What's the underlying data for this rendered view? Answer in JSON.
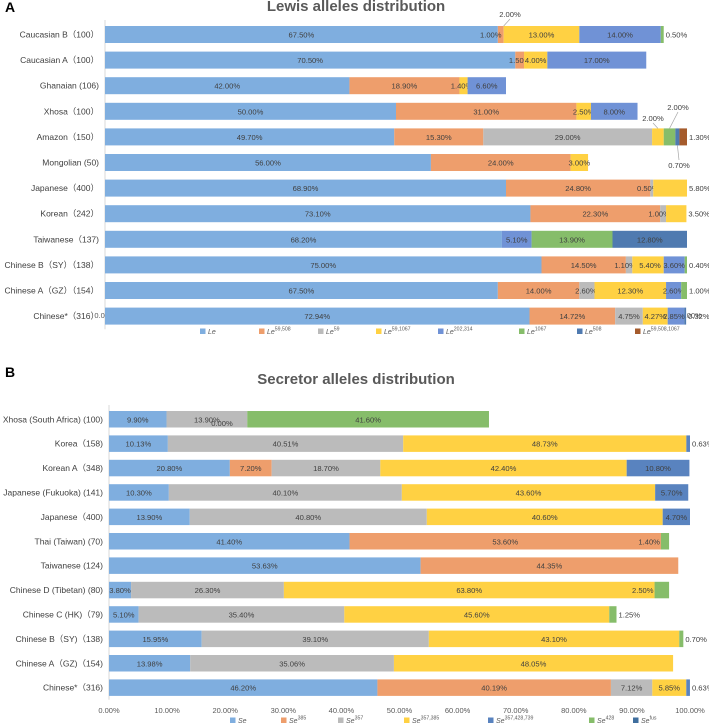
{
  "chart_data": [
    {
      "panel": "A",
      "type": "bar",
      "orientation": "horizontal",
      "stacked": true,
      "title": "Lewis alleles distribution",
      "categories": [
        "Caucasian B（100）",
        "Caucasian A（100）",
        "Ghanaian (106)",
        "Xhosa（100）",
        "Amazon（150）",
        "Mongolian (50)",
        "Japanese（400）",
        "Korean（242）",
        "Taiwanese（137)",
        "Chinese B（SY）（138）",
        "Chinese A（GZ）（154）",
        "Chinese*（316）"
      ],
      "series": [
        {
          "name": "Le",
          "base": "Le",
          "sup": "",
          "color": "#7FAEDF",
          "values": [
            67.5,
            70.5,
            42.0,
            50.0,
            49.7,
            56.0,
            68.9,
            73.1,
            68.2,
            75.0,
            67.5,
            72.94
          ]
        },
        {
          "name": "Le59,508",
          "base": "Le",
          "sup": "59,508",
          "color": "#EE9E6C",
          "values": [
            1.0,
            1.5,
            18.9,
            31.0,
            15.3,
            24.0,
            24.8,
            22.3,
            0,
            14.5,
            14.0,
            14.72
          ]
        },
        {
          "name": "Le59",
          "base": "Le",
          "sup": "59",
          "color": "#BBBBBB",
          "values": [
            0,
            0,
            0,
            0,
            29.0,
            0,
            0.5,
            1.0,
            0,
            1.1,
            2.6,
            4.75
          ]
        },
        {
          "name": "Le59,1067",
          "base": "Le",
          "sup": "59,1067",
          "color": "#FFD143",
          "values": [
            13.0,
            4.0,
            1.4,
            2.5,
            2.0,
            3.0,
            5.8,
            3.5,
            0,
            5.4,
            12.3,
            4.27
          ]
        },
        {
          "name": "Le202,314",
          "base": "Le",
          "sup": "202,314",
          "color": "#7092D6",
          "values": [
            14.0,
            17.0,
            6.6,
            8.0,
            0,
            0,
            0,
            0,
            5.1,
            3.6,
            2.6,
            2.85
          ]
        },
        {
          "name": "Le1067",
          "base": "Le",
          "sup": "1067",
          "color": "#86BD6A",
          "values": [
            0.5,
            0,
            0,
            0,
            2.0,
            0,
            0,
            0,
            13.9,
            0.4,
            1.0,
            0
          ]
        },
        {
          "name": "Le508",
          "base": "Le",
          "sup": "508",
          "color": "#4F7AB0",
          "values": [
            0,
            0,
            0,
            0,
            0.7,
            0,
            0,
            0,
            12.8,
            0,
            0,
            0.32
          ]
        },
        {
          "name": "Le59,508,1067",
          "base": "Le",
          "sup": "59,508,1067",
          "color": "#A55B2C",
          "values": [
            0,
            0,
            0,
            0,
            1.3,
            0,
            0,
            0,
            0,
            0,
            0,
            0
          ]
        }
      ],
      "data_labels": [
        [
          "67.50%",
          "1.00%",
          "",
          "13.00%",
          "14.00%",
          "0.50%",
          "",
          ""
        ],
        [
          "70.50%",
          "1.50%",
          "",
          "4.00%",
          "17.00%",
          "",
          "",
          ""
        ],
        [
          "42.00%",
          "18.90%",
          "",
          "1.40%",
          "6.60%",
          "",
          "",
          ""
        ],
        [
          "50.00%",
          "31.00%",
          "",
          "2.50%",
          "8.00%",
          "",
          "",
          ""
        ],
        [
          "49.70%",
          "15.30%",
          "29.00%",
          "2.00%",
          "",
          "2.00%",
          "0.70%",
          "1.30%"
        ],
        [
          "56.00%",
          "24.00%",
          "",
          "3.00%",
          "",
          "",
          "",
          ""
        ],
        [
          "68.90%",
          "24.80%",
          "0.50%",
          "5.80%",
          "",
          "",
          "",
          ""
        ],
        [
          "73.10%",
          "22.30%",
          "1.00%",
          "3.50%",
          "",
          "",
          "",
          ""
        ],
        [
          "68.20%",
          "",
          "",
          "",
          "5.10%",
          "13.90%",
          "12.80%",
          ""
        ],
        [
          "75.00%",
          "14.50%",
          "1.10%",
          "5.40%",
          "3.60%",
          "0.40%",
          "",
          ""
        ],
        [
          "67.50%",
          "14.00%",
          "2.60%",
          "12.30%",
          "2.60%",
          "1.00%",
          "",
          ""
        ],
        [
          "72.94%",
          "14.72%",
          "4.75%",
          "4.27%",
          "2.85%",
          "",
          "0.32%",
          ""
        ]
      ],
      "annotations": [
        "2.00%",
        "2.00%",
        "2.00%",
        "0.70%"
      ],
      "xlim": [
        0,
        100
      ],
      "ticks": [
        "0.00%",
        "10.00%",
        "20.00%",
        "30.00%",
        "40.00%",
        "50.00%",
        "60.00%",
        "70.00%",
        "80.00%",
        "90.00%",
        "100.00%"
      ],
      "legend": "bottom"
    },
    {
      "panel": "B",
      "type": "bar",
      "orientation": "horizontal",
      "stacked": true,
      "title": "Secretor alleles distribution",
      "categories": [
        "Xhosa (South Africa) (100)",
        "Korea（158)",
        "Korean A（348)",
        "Japanese (Fukuoka) (141)",
        "Japanese（400)",
        "Thai (Taiwan) (70)",
        "Taiwanese (124)",
        "Chinese D (Tibetan) (80)",
        "Chinese C (HK)（79)",
        "Chinese B（SY)（138)",
        "Chinese A（GZ)（154)",
        "Chinese*（316)"
      ],
      "series": [
        {
          "name": "Se",
          "base": "Se",
          "sup": "",
          "color": "#7FAEDF",
          "values": [
            9.9,
            10.13,
            20.8,
            10.3,
            13.9,
            41.4,
            53.63,
            3.8,
            5.1,
            15.95,
            13.98,
            46.2
          ]
        },
        {
          "name": "Se385",
          "base": "Se",
          "sup": "385",
          "color": "#EE9E6C",
          "values": [
            0,
            0,
            7.2,
            0,
            0,
            53.6,
            44.35,
            0,
            0,
            0,
            0,
            40.19
          ]
        },
        {
          "name": "Se357",
          "base": "Se",
          "sup": "357",
          "color": "#BBBBBB",
          "values": [
            13.9,
            40.51,
            18.7,
            40.1,
            40.8,
            0,
            0,
            26.3,
            35.4,
            39.1,
            35.06,
            7.12
          ]
        },
        {
          "name": "Se357,385",
          "base": "Se",
          "sup": "357,385",
          "color": "#FFD143",
          "values": [
            0,
            48.73,
            42.4,
            43.6,
            40.6,
            0,
            0,
            63.8,
            45.6,
            43.1,
            48.05,
            5.85
          ]
        },
        {
          "name": "Se357,428,739",
          "base": "Se",
          "sup": "357,428,739",
          "color": "#5983BF",
          "values": [
            0,
            0.63,
            10.8,
            5.7,
            4.7,
            0,
            0,
            0,
            0,
            0,
            0,
            0.63
          ]
        },
        {
          "name": "Se428",
          "base": "Se",
          "sup": "428",
          "color": "#86BD6A",
          "values": [
            41.6,
            0,
            0,
            0,
            0,
            1.4,
            0,
            2.5,
            1.25,
            0.7,
            0,
            0
          ]
        },
        {
          "name": "Sefus",
          "base": "Se",
          "sup": "fus",
          "color": "#3F6E9E",
          "values": [
            0,
            0,
            0,
            0,
            0,
            0,
            0,
            0,
            0,
            0,
            0,
            0
          ]
        }
      ],
      "data_labels": [
        [
          "9.90%",
          "",
          "13.90%",
          "",
          "",
          "41.60%",
          ""
        ],
        [
          "10.13%",
          "",
          "40.51%",
          "48.73%",
          "0.63%",
          "",
          ""
        ],
        [
          "20.80%",
          "7.20%",
          "18.70%",
          "42.40%",
          "10.80%",
          "",
          ""
        ],
        [
          "10.30%",
          "",
          "40.10%",
          "43.60%",
          "5.70%",
          "",
          ""
        ],
        [
          "13.90%",
          "",
          "40.80%",
          "40.60%",
          "4.70%",
          "",
          ""
        ],
        [
          "41.40%",
          "53.60%",
          "",
          "",
          "",
          "1.40%",
          ""
        ],
        [
          "53.63%",
          "44.35%",
          "",
          "",
          "",
          "",
          ""
        ],
        [
          "3.80%",
          "",
          "26.30%",
          "63.80%",
          "",
          "2.50%",
          ""
        ],
        [
          "5.10%",
          "",
          "35.40%",
          "45.60%",
          "",
          "1.25%",
          ""
        ],
        [
          "15.95%",
          "",
          "39.10%",
          "43.10%",
          "",
          "0.70%",
          ""
        ],
        [
          "13.98%",
          "",
          "35.06%",
          "48.05%",
          "",
          "",
          ""
        ],
        [
          "46.20%",
          "40.19%",
          "7.12%",
          "5.85%",
          "0.63%",
          "",
          ""
        ]
      ],
      "annotations": [
        "0.00%"
      ],
      "xlim": [
        0,
        100
      ],
      "ticks": [
        "0.00%",
        "10.00%",
        "20.00%",
        "30.00%",
        "40.00%",
        "50.00%",
        "60.00%",
        "70.00%",
        "80.00%",
        "90.00%",
        "100.00%"
      ],
      "legend": "bottom"
    }
  ]
}
